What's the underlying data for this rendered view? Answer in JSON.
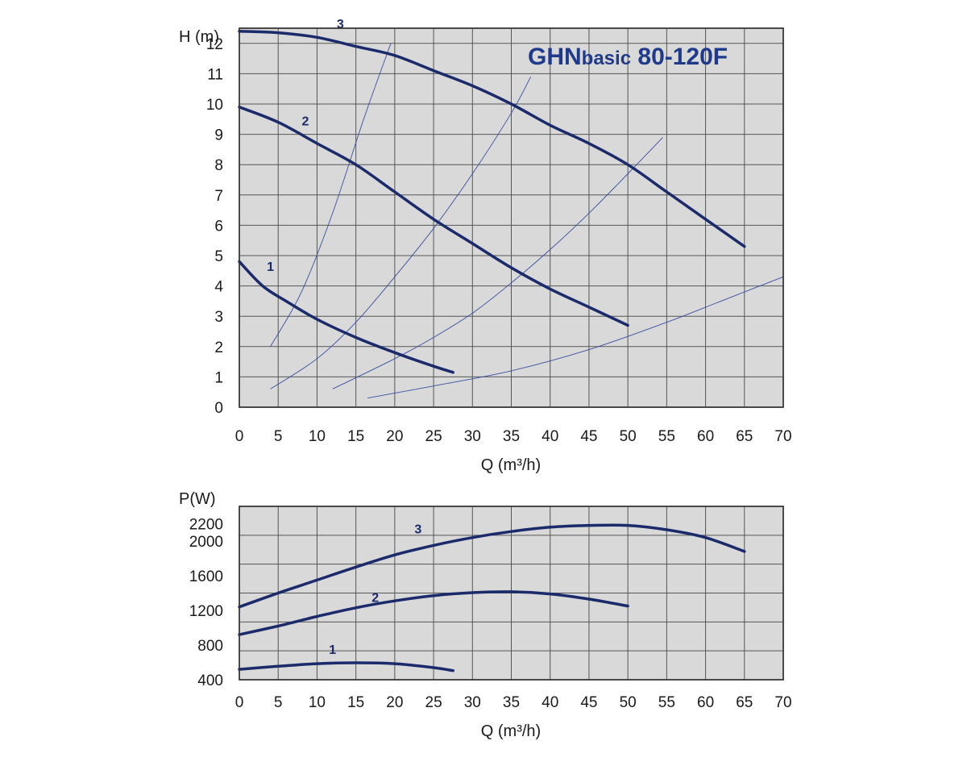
{
  "chart_data": [
    {
      "type": "line",
      "title": "GHNbasic 80-120F",
      "title_parts": [
        "GHN",
        "basic",
        " 80-120F"
      ],
      "xlabel": "Q (m³/h)",
      "ylabel": "H (m)",
      "xlim": [
        0,
        70
      ],
      "ylim": [
        0,
        12.5
      ],
      "x_ticks": [
        0,
        5,
        10,
        15,
        20,
        25,
        30,
        35,
        40,
        45,
        50,
        55,
        60,
        65,
        70
      ],
      "x_tick_labels": [
        "0",
        "5",
        "10",
        "15",
        "20",
        "25",
        "30",
        "35",
        "40",
        "45",
        "50",
        "55",
        "60",
        "65",
        "70"
      ],
      "y_ticks": [
        0,
        1,
        2,
        3,
        4,
        5,
        6,
        7,
        8,
        9,
        10,
        11,
        12
      ],
      "y_tick_labels": [
        "0",
        "1",
        "2",
        "3",
        "4",
        "5",
        "6",
        "7",
        "8",
        "9",
        "10",
        "11",
        "12"
      ],
      "grid": true,
      "background": "#d9d9d9",
      "series_color": "#1b2a6b",
      "series": [
        {
          "name": "1",
          "label_at": [
            4,
            4.5
          ],
          "x": [
            0,
            3,
            6,
            10,
            15,
            20,
            25,
            27.5
          ],
          "y": [
            4.8,
            4.0,
            3.5,
            2.9,
            2.3,
            1.8,
            1.35,
            1.15
          ]
        },
        {
          "name": "2",
          "label_at": [
            8.5,
            9.3
          ],
          "x": [
            0,
            5,
            10,
            15,
            20,
            25,
            30,
            35,
            40,
            45,
            50
          ],
          "y": [
            9.9,
            9.4,
            8.7,
            8.0,
            7.1,
            6.2,
            5.4,
            4.6,
            3.9,
            3.3,
            2.7
          ]
        },
        {
          "name": "3",
          "label_at": [
            13,
            12.5
          ],
          "x": [
            0,
            5,
            10,
            15,
            20,
            25,
            30,
            35,
            40,
            45,
            50,
            55,
            60,
            65
          ],
          "y": [
            12.4,
            12.35,
            12.2,
            11.9,
            11.6,
            11.1,
            10.6,
            10.0,
            9.3,
            8.7,
            8.0,
            7.1,
            6.2,
            5.3
          ]
        }
      ],
      "system_curves": [
        {
          "x": [
            4,
            8,
            12,
            16,
            19.5
          ],
          "y": [
            2.0,
            3.8,
            6.4,
            9.5,
            12.0
          ]
        },
        {
          "x": [
            4,
            10,
            15,
            20,
            25,
            30,
            35,
            37.5
          ],
          "y": [
            0.6,
            1.6,
            2.8,
            4.3,
            5.9,
            7.7,
            9.7,
            10.9
          ]
        },
        {
          "x": [
            12,
            20,
            25,
            30,
            35,
            40,
            45,
            50,
            54.5
          ],
          "y": [
            0.6,
            1.6,
            2.3,
            3.1,
            4.1,
            5.2,
            6.4,
            7.7,
            8.9
          ]
        },
        {
          "x": [
            16.5,
            25,
            35,
            45,
            55,
            62,
            70
          ],
          "y": [
            0.3,
            0.7,
            1.2,
            1.9,
            2.8,
            3.5,
            4.3
          ]
        }
      ]
    },
    {
      "type": "line",
      "title": "",
      "xlabel": "Q (m³/h)",
      "ylabel": "P(W)",
      "xlim": [
        0,
        70
      ],
      "ylim": [
        400,
        2400
      ],
      "x_ticks": [
        0,
        5,
        10,
        15,
        20,
        25,
        30,
        35,
        40,
        45,
        50,
        55,
        60,
        65,
        70
      ],
      "x_tick_labels": [
        "0",
        "5",
        "10",
        "15",
        "20",
        "25",
        "30",
        "35",
        "40",
        "45",
        "50",
        "55",
        "60",
        "65",
        "70"
      ],
      "y_ticks": [
        400,
        800,
        1200,
        1600,
        2000,
        2200
      ],
      "y_tick_labels": [
        "400",
        "800",
        "1200",
        "1600",
        "2000",
        "2200"
      ],
      "grid_rows": 6,
      "grid": true,
      "background": "#d9d9d9",
      "series_color": "#1b2a6b",
      "series": [
        {
          "name": "1",
          "label_at": [
            12,
            700
          ],
          "x": [
            0,
            5,
            10,
            15,
            20,
            25,
            27.5
          ],
          "y": [
            520,
            555,
            585,
            595,
            585,
            540,
            505
          ]
        },
        {
          "name": "2",
          "label_at": [
            17.5,
            1300
          ],
          "x": [
            0,
            5,
            10,
            15,
            20,
            25,
            30,
            35,
            40,
            45,
            50
          ],
          "y": [
            920,
            1020,
            1130,
            1230,
            1310,
            1370,
            1405,
            1415,
            1390,
            1330,
            1250
          ]
        },
        {
          "name": "3",
          "label_at": [
            23,
            2090
          ],
          "x": [
            0,
            5,
            10,
            15,
            20,
            25,
            30,
            35,
            40,
            45,
            50,
            55,
            60,
            65
          ],
          "y": [
            1240,
            1400,
            1550,
            1700,
            1840,
            1950,
            2040,
            2110,
            2160,
            2180,
            2180,
            2130,
            2040,
            1880
          ]
        }
      ]
    }
  ]
}
